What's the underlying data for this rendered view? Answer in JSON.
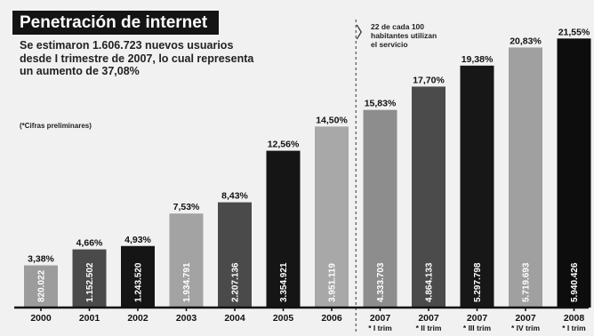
{
  "chart_data": {
    "type": "bar",
    "title": "Penetración de internet",
    "subtitle": "Se estimaron 1.606.723 nuevos usuarios\ndesde I trimestre de 2007, lo cual representa\nun aumento de 37,08%",
    "note": "(*Cifras preliminares)",
    "annotation": "22 de cada 100\nhabitantes utilizan\nel servicio",
    "categories": [
      "2000",
      "2001",
      "2002",
      "2003",
      "2004",
      "2005",
      "2006",
      "2007",
      "2007",
      "2007",
      "2007",
      "2008"
    ],
    "subcategories": [
      "",
      "",
      "",
      "",
      "",
      "",
      "",
      "* I trim",
      "* II trim",
      "* III trim",
      "* IV trim",
      "* I trim"
    ],
    "series": [
      {
        "values": [
          3.38,
          4.66,
          4.93,
          7.53,
          8.43,
          12.56,
          14.5,
          15.83,
          17.7,
          19.38,
          20.83,
          21.55
        ],
        "value_labels": [
          "3,38%",
          "4,66%",
          "4,93%",
          "7,53%",
          "8,43%",
          "12,56%",
          "14,50%",
          "15,83%",
          "17,70%",
          "19,38%",
          "20,83%",
          "21,55%"
        ],
        "users_labels": [
          "820.022",
          "1.152.502",
          "1.243.520",
          "1.934.791",
          "2.207.136",
          "3.354.921",
          "3.951.119",
          "4.333.703",
          "4.864.133",
          "5.297.798",
          "5.719.693",
          "5.940.426"
        ]
      }
    ],
    "bar_colors": [
      "#9c9c9c",
      "#4a4a4a",
      "#151515",
      "#a3a3a3",
      "#4a4a4a",
      "#151515",
      "#a8a8a8",
      "#8d8d8d",
      "#4b4b4b",
      "#171717",
      "#a0a0a0",
      "#0d0d0d"
    ],
    "ylim": [
      0,
      22.5
    ],
    "grid": false,
    "legend": "none"
  }
}
